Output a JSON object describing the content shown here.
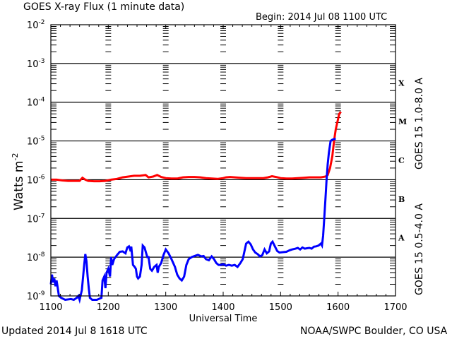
{
  "header": {
    "title": "GOES X-ray Flux (1 minute data)",
    "begin": "Begin: 2014 Jul 08 1100 UTC"
  },
  "footer": {
    "updated": "Updated 2014 Jul  8 1618 UTC",
    "credit": "NOAA/SWPC Boulder, CO USA"
  },
  "colors": {
    "long_channel": "#ff0000",
    "short_channel": "#0000ff",
    "axes": "#000000",
    "background": "#ffffff"
  },
  "chart_data": {
    "type": "line",
    "title": "GOES X-ray Flux (1 minute data)",
    "subtitle": "Begin: 2014 Jul 08 1100 UTC",
    "xlabel": "Universal Time",
    "ylabel": "Watts m-2",
    "yscale": "log",
    "xlim": [
      1100,
      1700
    ],
    "ylim": [
      1e-09,
      0.01
    ],
    "x_ticks": [
      "1100",
      "1200",
      "1300",
      "1400",
      "1500",
      "1600",
      "1700"
    ],
    "y_ticks": [
      {
        "base": "10",
        "exp": "-2"
      },
      {
        "base": "10",
        "exp": "-3"
      },
      {
        "base": "10",
        "exp": "-4"
      },
      {
        "base": "10",
        "exp": "-5"
      },
      {
        "base": "10",
        "exp": "-6"
      },
      {
        "base": "10",
        "exp": "-7"
      },
      {
        "base": "10",
        "exp": "-8"
      },
      {
        "base": "10",
        "exp": "-9"
      }
    ],
    "grid": "horizontal at each decade 1e-3 to 1e-8",
    "flare_classes": [
      {
        "label": "X",
        "range": [
          0.0001,
          0.001
        ]
      },
      {
        "label": "M",
        "range": [
          1e-05,
          0.0001
        ]
      },
      {
        "label": "C",
        "range": [
          1e-06,
          1e-05
        ]
      },
      {
        "label": "B",
        "range": [
          1e-07,
          1e-06
        ]
      },
      {
        "label": "A",
        "range": [
          1e-08,
          1e-07
        ]
      }
    ],
    "legend": [
      {
        "name": "GOES 15 1.0-8.0 A",
        "color": "#ff0000",
        "position": "right-vertical-upper"
      },
      {
        "name": "GOES 15 0.5-4.0 A",
        "color": "#0000ff",
        "position": "right-vertical-lower"
      }
    ],
    "x_minutes_offset_note": "x given as minutes since 1100 UTC; y as log10 flux",
    "series": [
      {
        "name": "GOES 15 1.0-8.0 A",
        "color": "#ff0000",
        "points": [
          [
            0,
            -6.0
          ],
          [
            10,
            -6.0
          ],
          [
            20,
            -6.02
          ],
          [
            30,
            -6.03
          ],
          [
            40,
            -6.03
          ],
          [
            50,
            -6.03
          ],
          [
            55,
            -5.95
          ],
          [
            60,
            -6.0
          ],
          [
            65,
            -6.03
          ],
          [
            75,
            -6.04
          ],
          [
            85,
            -6.04
          ],
          [
            95,
            -6.03
          ],
          [
            105,
            -6.0
          ],
          [
            115,
            -5.98
          ],
          [
            125,
            -5.94
          ],
          [
            135,
            -5.92
          ],
          [
            145,
            -5.9
          ],
          [
            155,
            -5.9
          ],
          [
            165,
            -5.88
          ],
          [
            170,
            -5.94
          ],
          [
            178,
            -5.92
          ],
          [
            185,
            -5.88
          ],
          [
            192,
            -5.93
          ],
          [
            200,
            -5.96
          ],
          [
            210,
            -5.97
          ],
          [
            220,
            -5.97
          ],
          [
            230,
            -5.94
          ],
          [
            240,
            -5.93
          ],
          [
            250,
            -5.93
          ],
          [
            260,
            -5.94
          ],
          [
            270,
            -5.96
          ],
          [
            280,
            -5.97
          ],
          [
            290,
            -5.98
          ],
          [
            300,
            -5.96
          ],
          [
            305,
            -5.94
          ],
          [
            312,
            -5.93
          ],
          [
            320,
            -5.94
          ],
          [
            330,
            -5.95
          ],
          [
            340,
            -5.96
          ],
          [
            350,
            -5.96
          ],
          [
            360,
            -5.96
          ],
          [
            370,
            -5.96
          ],
          [
            378,
            -5.94
          ],
          [
            385,
            -5.91
          ],
          [
            392,
            -5.93
          ],
          [
            400,
            -5.96
          ],
          [
            410,
            -5.97
          ],
          [
            420,
            -5.97
          ],
          [
            430,
            -5.96
          ],
          [
            440,
            -5.95
          ],
          [
            450,
            -5.94
          ],
          [
            460,
            -5.94
          ],
          [
            470,
            -5.94
          ],
          [
            478,
            -5.92
          ],
          [
            482,
            -5.88
          ],
          [
            486,
            -5.7
          ],
          [
            490,
            -5.4
          ],
          [
            493,
            -5.0
          ],
          [
            496,
            -4.7
          ],
          [
            499,
            -4.5
          ],
          [
            502,
            -4.3
          ],
          [
            505,
            -4.25
          ]
        ]
      },
      {
        "name": "GOES 15 0.5-4.0 A",
        "color": "#0000ff",
        "points": [
          [
            0,
            -8.7
          ],
          [
            2,
            -8.45
          ],
          [
            4,
            -8.65
          ],
          [
            6,
            -8.55
          ],
          [
            8,
            -8.75
          ],
          [
            10,
            -8.6
          ],
          [
            12,
            -8.8
          ],
          [
            14,
            -9.0
          ],
          [
            18,
            -9.05
          ],
          [
            25,
            -9.1
          ],
          [
            35,
            -9.08
          ],
          [
            40,
            -9.1
          ],
          [
            45,
            -9.05
          ],
          [
            48,
            -9.0
          ],
          [
            50,
            -9.1
          ],
          [
            54,
            -8.85
          ],
          [
            58,
            -8.2
          ],
          [
            60,
            -7.92
          ],
          [
            62,
            -8.1
          ],
          [
            64,
            -8.5
          ],
          [
            66,
            -8.8
          ],
          [
            68,
            -9.05
          ],
          [
            72,
            -9.1
          ],
          [
            80,
            -9.1
          ],
          [
            88,
            -9.05
          ],
          [
            90,
            -8.6
          ],
          [
            93,
            -8.5
          ],
          [
            95,
            -8.8
          ],
          [
            97,
            -8.4
          ],
          [
            100,
            -8.3
          ],
          [
            103,
            -8.5
          ],
          [
            105,
            -8.0
          ],
          [
            107,
            -8.2
          ],
          [
            110,
            -8.05
          ],
          [
            115,
            -7.95
          ],
          [
            120,
            -7.86
          ],
          [
            125,
            -7.85
          ],
          [
            130,
            -7.9
          ],
          [
            133,
            -7.75
          ],
          [
            136,
            -7.72
          ],
          [
            138,
            -7.8
          ],
          [
            140,
            -7.73
          ],
          [
            143,
            -8.2
          ],
          [
            146,
            -8.25
          ],
          [
            148,
            -8.3
          ],
          [
            150,
            -8.5
          ],
          [
            152,
            -8.55
          ],
          [
            155,
            -8.5
          ],
          [
            158,
            -8.2
          ],
          [
            160,
            -7.7
          ],
          [
            163,
            -7.75
          ],
          [
            166,
            -7.9
          ],
          [
            168,
            -8.0
          ],
          [
            170,
            -8.0
          ],
          [
            173,
            -8.3
          ],
          [
            176,
            -8.35
          ],
          [
            180,
            -8.25
          ],
          [
            184,
            -8.2
          ],
          [
            186,
            -8.4
          ],
          [
            188,
            -8.25
          ],
          [
            192,
            -8.15
          ],
          [
            196,
            -7.95
          ],
          [
            200,
            -7.8
          ],
          [
            205,
            -7.9
          ],
          [
            210,
            -8.05
          ],
          [
            216,
            -8.25
          ],
          [
            220,
            -8.45
          ],
          [
            224,
            -8.55
          ],
          [
            228,
            -8.6
          ],
          [
            232,
            -8.5
          ],
          [
            236,
            -8.2
          ],
          [
            240,
            -8.05
          ],
          [
            245,
            -8.0
          ],
          [
            250,
            -7.97
          ],
          [
            256,
            -7.94
          ],
          [
            262,
            -7.98
          ],
          [
            266,
            -7.97
          ],
          [
            270,
            -8.05
          ],
          [
            275,
            -8.08
          ],
          [
            280,
            -7.98
          ],
          [
            284,
            -8.05
          ],
          [
            288,
            -8.15
          ],
          [
            292,
            -8.2
          ],
          [
            296,
            -8.2
          ],
          [
            300,
            -8.18
          ],
          [
            305,
            -8.22
          ],
          [
            310,
            -8.2
          ],
          [
            315,
            -8.22
          ],
          [
            320,
            -8.2
          ],
          [
            325,
            -8.25
          ],
          [
            330,
            -8.15
          ],
          [
            334,
            -8.05
          ],
          [
            337,
            -7.85
          ],
          [
            340,
            -7.65
          ],
          [
            344,
            -7.6
          ],
          [
            348,
            -7.67
          ],
          [
            352,
            -7.8
          ],
          [
            356,
            -7.88
          ],
          [
            360,
            -7.92
          ],
          [
            364,
            -7.98
          ],
          [
            368,
            -7.95
          ],
          [
            372,
            -7.8
          ],
          [
            376,
            -7.9
          ],
          [
            380,
            -7.85
          ],
          [
            383,
            -7.65
          ],
          [
            386,
            -7.6
          ],
          [
            390,
            -7.72
          ],
          [
            394,
            -7.84
          ],
          [
            398,
            -7.88
          ],
          [
            404,
            -7.87
          ],
          [
            410,
            -7.86
          ],
          [
            416,
            -7.82
          ],
          [
            420,
            -7.8
          ],
          [
            426,
            -7.78
          ],
          [
            430,
            -7.76
          ],
          [
            434,
            -7.8
          ],
          [
            438,
            -7.75
          ],
          [
            442,
            -7.78
          ],
          [
            446,
            -7.77
          ],
          [
            450,
            -7.76
          ],
          [
            454,
            -7.78
          ],
          [
            458,
            -7.73
          ],
          [
            462,
            -7.72
          ],
          [
            466,
            -7.7
          ],
          [
            470,
            -7.65
          ],
          [
            472,
            -7.7
          ],
          [
            474,
            -7.45
          ],
          [
            476,
            -7.0
          ],
          [
            478,
            -6.5
          ],
          [
            480,
            -6.0
          ],
          [
            482,
            -5.6
          ],
          [
            484,
            -5.3
          ],
          [
            487,
            -5.0
          ],
          [
            490,
            -4.97
          ],
          [
            494,
            -4.95
          ],
          [
            496,
            -4.95
          ]
        ]
      }
    ]
  }
}
